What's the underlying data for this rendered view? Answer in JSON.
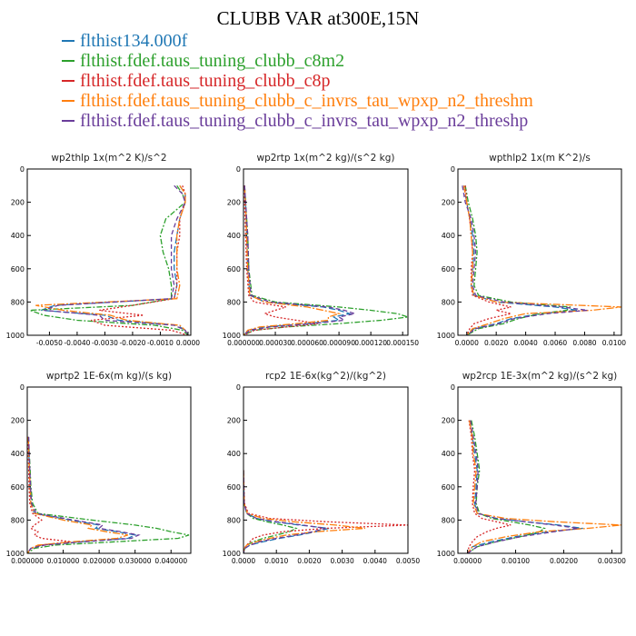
{
  "figure": {
    "title": "CLUBB VAR at300E,15N"
  },
  "legend": [
    {
      "label": "flthist134.000f",
      "color": "#1f77b4"
    },
    {
      "label": "flthist.fdef.taus_tuning_clubb_c8m2",
      "color": "#2ca02c"
    },
    {
      "label": "flthist.fdef.taus_tuning_clubb_c8p",
      "color": "#d62728"
    },
    {
      "label": "flthist.fdef.taus_tuning_clubb_c_invrs_tau_wpxp_n2_threshm",
      "color": "#ff7f0e"
    },
    {
      "label": "flthist.fdef.taus_tuning_clubb_c_invrs_tau_wpxp_n2_threshp",
      "color": "#6a3d9a"
    }
  ],
  "chart_data": [
    {
      "type": "line",
      "title": "wp2thlp  1x(m^2 K)/s^2",
      "xlim": [
        -0.0058,
        0.0001
      ],
      "ylim": [
        1000,
        0
      ],
      "xticks": [
        -0.005,
        -0.004,
        -0.003,
        -0.002,
        -0.001,
        0
      ],
      "xtick_labels": [
        "-0.0050",
        "-0.0040",
        "-0.0030",
        "-0.0020",
        "-0.0010",
        "0.0000"
      ],
      "yticks": [
        0,
        200,
        400,
        600,
        800,
        1000
      ],
      "y": [
        100,
        150,
        200,
        300,
        400,
        500,
        600,
        700,
        780,
        820,
        850,
        880,
        910,
        940,
        970,
        1000
      ],
      "series": [
        {
          "name": "flthist134.000f",
          "values": [
            -0.0003,
            -0.0001,
            -0.0001,
            -0.0003,
            -0.0004,
            -0.0005,
            -0.0005,
            -0.0004,
            -0.0005,
            -0.0048,
            -0.0053,
            -0.003,
            -0.0025,
            -0.0004,
            -0.0001,
            0
          ]
        },
        {
          "name": "flthist.fdef.taus_tuning_clubb_c8m2",
          "values": [
            -0.0004,
            -0.0002,
            -0.0001,
            -0.0008,
            -0.001,
            -0.0009,
            -0.0007,
            -0.0006,
            -0.0006,
            -0.002,
            -0.0057,
            -0.0052,
            -0.004,
            -0.0012,
            -0.0002,
            0
          ]
        },
        {
          "name": "flthist.fdef.taus_tuning_clubb_c8p",
          "values": [
            -0.0002,
            -0.0001,
            -0.0001,
            -0.0003,
            -0.0003,
            -0.0004,
            -0.0004,
            -0.0004,
            -0.0005,
            -0.002,
            -0.0032,
            -0.0016,
            -0.0035,
            -0.003,
            -0.0006,
            0
          ]
        },
        {
          "name": "flthist.fdef.taus_tuning_clubb_c_invrs_tau_wpxp_n2_threshm",
          "values": [
            -0.0003,
            -0.0001,
            -0.0001,
            -0.0003,
            -0.0004,
            -0.0004,
            -0.0004,
            -0.0003,
            -0.0004,
            -0.0055,
            -0.0045,
            -0.0028,
            -0.0022,
            -0.0003,
            -0.0001,
            0
          ]
        },
        {
          "name": "flthist.fdef.taus_tuning_clubb_c_invrs_tau_wpxp_n2_threshp",
          "values": [
            -0.0005,
            -0.0002,
            -0.0001,
            -0.0004,
            -0.0006,
            -0.0006,
            -0.0006,
            -0.0005,
            -0.0006,
            -0.0047,
            -0.0052,
            -0.0032,
            -0.003,
            -0.0005,
            -0.0001,
            0
          ]
        }
      ]
    },
    {
      "type": "line",
      "title": "wp2rtp  1x(m^2 kg)/(s^2 kg)",
      "xlim": [
        0,
        0.000155
      ],
      "ylim": [
        1000,
        0
      ],
      "xticks": [
        0,
        3e-05,
        6e-05,
        9e-05,
        0.00012,
        0.00015
      ],
      "xtick_labels": [
        "0.000000",
        "0.000030",
        "0.000060",
        "0.000090",
        "0.000120",
        "0.000150"
      ],
      "yticks": [
        0,
        200,
        400,
        600,
        800,
        1000
      ],
      "y": [
        100,
        200,
        400,
        600,
        760,
        800,
        830,
        850,
        870,
        890,
        910,
        930,
        950,
        970,
        1000
      ],
      "series": [
        {
          "name": "flthist134.000f",
          "values": [
            1e-06,
            2e-06,
            3e-06,
            4e-06,
            6e-06,
            2e-05,
            7.5e-05,
            9e-05,
            0.0001,
            8.5e-05,
            9e-05,
            6e-05,
            2e-05,
            5e-06,
            0
          ]
        },
        {
          "name": "flthist.fdef.taus_tuning_clubb_c8m2",
          "values": [
            1e-06,
            2e-06,
            4e-06,
            5e-06,
            8e-06,
            3e-05,
            9e-05,
            0.00012,
            0.000145,
            0.000155,
            0.00013,
            9e-05,
            4e-05,
            1e-05,
            0
          ]
        },
        {
          "name": "flthist.fdef.taus_tuning_clubb_c8p",
          "values": [
            1e-06,
            1e-06,
            2e-06,
            3e-06,
            5e-06,
            1e-05,
            4e-05,
            3e-05,
            2e-05,
            3e-05,
            5e-05,
            7e-05,
            4e-05,
            1e-05,
            0
          ]
        },
        {
          "name": "flthist.fdef.taus_tuning_clubb_c_invrs_tau_wpxp_n2_threshm",
          "values": [
            1e-06,
            2e-06,
            3e-06,
            4e-06,
            6e-06,
            2e-05,
            6e-05,
            7.5e-05,
            9e-05,
            8e-05,
            8e-05,
            5e-05,
            1.5e-05,
            4e-06,
            0
          ]
        },
        {
          "name": "flthist.fdef.taus_tuning_clubb_c_invrs_tau_wpxp_n2_threshp",
          "values": [
            1e-06,
            2e-06,
            4e-06,
            5e-06,
            7e-06,
            2.5e-05,
            8e-05,
            9.5e-05,
            0.000105,
            9e-05,
            9.5e-05,
            6.5e-05,
            2.5e-05,
            6e-06,
            0
          ]
        }
      ]
    },
    {
      "type": "line",
      "title": "wpthlp2  1x(m K^2)/s",
      "xlim": [
        -0.0006,
        0.0105
      ],
      "ylim": [
        1000,
        0
      ],
      "xticks": [
        0,
        0.002,
        0.004,
        0.006,
        0.008,
        0.01
      ],
      "xtick_labels": [
        "0.0000",
        "0.0020",
        "0.0040",
        "0.0060",
        "0.0080",
        "0.0100"
      ],
      "yticks": [
        0,
        200,
        400,
        600,
        800,
        1000
      ],
      "y": [
        100,
        200,
        300,
        400,
        500,
        600,
        700,
        760,
        800,
        830,
        850,
        870,
        900,
        930,
        960,
        1000
      ],
      "series": [
        {
          "name": "flthist134.000f",
          "values": [
            -0.0002,
            0.0,
            0.0002,
            0.0004,
            0.0005,
            0.0004,
            0.0003,
            0.0005,
            0.002,
            0.006,
            0.0075,
            0.005,
            0.003,
            0.002,
            0.0005,
            0
          ]
        },
        {
          "name": "flthist.fdef.taus_tuning_clubb_c8m2",
          "values": [
            -0.0001,
            0.0001,
            0.0004,
            0.0006,
            0.0007,
            0.0006,
            0.0005,
            0.0008,
            0.003,
            0.007,
            0.0068,
            0.005,
            0.0035,
            0.0025,
            0.0008,
            0
          ]
        },
        {
          "name": "flthist.fdef.taus_tuning_clubb_c8p",
          "values": [
            -0.0001,
            0.0,
            0.0002,
            0.0003,
            0.0004,
            0.0003,
            0.0003,
            0.0004,
            0.0015,
            0.003,
            0.002,
            0.003,
            0.0015,
            0.0005,
            0.0002,
            0
          ]
        },
        {
          "name": "flthist.fdef.taus_tuning_clubb_c_invrs_tau_wpxp_n2_threshm",
          "values": [
            -0.0002,
            0.0,
            0.0002,
            0.0003,
            0.0004,
            0.0004,
            0.0003,
            0.0005,
            0.002,
            0.0105,
            0.0085,
            0.004,
            0.0025,
            0.0015,
            0.0004,
            0
          ]
        },
        {
          "name": "flthist.fdef.taus_tuning_clubb_c_invrs_tau_wpxp_n2_threshp",
          "values": [
            -0.0003,
            -0.0001,
            0.0003,
            0.0005,
            0.0006,
            0.0005,
            0.0004,
            0.0006,
            0.0025,
            0.0065,
            0.0082,
            0.0055,
            0.0032,
            0.0022,
            0.0006,
            0
          ]
        }
      ]
    },
    {
      "type": "line",
      "title": "wprtp2  1E-6x(m kg)/(s kg)",
      "xlim": [
        0,
        0.0455
      ],
      "ylim": [
        1000,
        0
      ],
      "xticks": [
        0,
        0.01,
        0.02,
        0.03,
        0.04
      ],
      "xtick_labels": [
        "0.000000",
        "0.010000",
        "0.020000",
        "0.030000",
        "0.040000"
      ],
      "yticks": [
        0,
        200,
        400,
        600,
        800,
        1000
      ],
      "y": [
        300,
        500,
        600,
        700,
        760,
        800,
        830,
        850,
        870,
        890,
        910,
        930,
        950,
        970,
        1000
      ],
      "series": [
        {
          "name": "flthist134.000f",
          "values": [
            0.0003,
            0.0006,
            0.0008,
            0.001,
            0.002,
            0.012,
            0.02,
            0.019,
            0.025,
            0.03,
            0.028,
            0.015,
            0.004,
            0.001,
            0
          ]
        },
        {
          "name": "flthist.fdef.taus_tuning_clubb_c8m2",
          "values": [
            0.0003,
            0.0008,
            0.001,
            0.0015,
            0.003,
            0.018,
            0.03,
            0.036,
            0.04,
            0.045,
            0.042,
            0.025,
            0.008,
            0.002,
            0
          ]
        },
        {
          "name": "flthist.fdef.taus_tuning_clubb_c8p",
          "values": [
            0.0002,
            0.0004,
            0.0005,
            0.0007,
            0.0015,
            0.004,
            0.002,
            0.001,
            0.003,
            0.002,
            0.004,
            0.012,
            0.004,
            0.001,
            0
          ]
        },
        {
          "name": "flthist.fdef.taus_tuning_clubb_c_invrs_tau_wpxp_n2_threshm",
          "values": [
            0.0003,
            0.0006,
            0.0008,
            0.001,
            0.002,
            0.01,
            0.018,
            0.017,
            0.022,
            0.028,
            0.025,
            0.013,
            0.003,
            0.001,
            0
          ]
        },
        {
          "name": "flthist.fdef.taus_tuning_clubb_c_invrs_tau_wpxp_n2_threshp",
          "values": [
            0.0004,
            0.0007,
            0.0009,
            0.0012,
            0.0025,
            0.013,
            0.021,
            0.02,
            0.026,
            0.031,
            0.029,
            0.016,
            0.005,
            0.001,
            0
          ]
        }
      ]
    },
    {
      "type": "line",
      "title": "rcp2  1E-6x(kg^2)/(kg^2)",
      "xlim": [
        0,
        0.005
      ],
      "ylim": [
        1000,
        0
      ],
      "xticks": [
        0,
        0.001,
        0.002,
        0.003,
        0.004,
        0.005
      ],
      "xtick_labels": [
        "0.0000",
        "0.0010",
        "0.0020",
        "0.0030",
        "0.0040",
        "0.0050"
      ],
      "yticks": [
        0,
        200,
        400,
        600,
        800,
        1000
      ],
      "y": [
        500,
        700,
        760,
        790,
        810,
        830,
        850,
        870,
        890,
        910,
        930,
        950,
        970,
        1000
      ],
      "series": [
        {
          "name": "flthist134.000f",
          "values": [
            0,
            2e-05,
            0.0001,
            0.0004,
            0.0009,
            0.0017,
            0.0026,
            0.0022,
            0.0017,
            0.0011,
            0.0006,
            0.0002,
            5e-05,
            0
          ]
        },
        {
          "name": "flthist.fdef.taus_tuning_clubb_c8m2",
          "values": [
            0,
            2e-05,
            0.0001,
            0.0003,
            0.0007,
            0.0012,
            0.0016,
            0.0014,
            0.001,
            0.0006,
            0.0003,
            0.0001,
            3e-05,
            0
          ]
        },
        {
          "name": "flthist.fdef.taus_tuning_clubb_c8p",
          "values": [
            0,
            3e-05,
            0.00015,
            0.0008,
            0.0025,
            0.005,
            0.0025,
            0.0012,
            0.0006,
            0.0003,
            0.0002,
            0.0001,
            2e-05,
            0
          ]
        },
        {
          "name": "flthist.fdef.taus_tuning_clubb_c_invrs_tau_wpxp_n2_threshm",
          "values": [
            0,
            2e-05,
            0.00012,
            0.0006,
            0.0015,
            0.0028,
            0.0037,
            0.0022,
            0.0013,
            0.0008,
            0.0004,
            0.0001,
            3e-05,
            0
          ]
        },
        {
          "name": "flthist.fdef.taus_tuning_clubb_c_invrs_tau_wpxp_n2_threshp",
          "values": [
            0,
            2e-05,
            0.0001,
            0.0004,
            0.001,
            0.0018,
            0.0025,
            0.0021,
            0.0016,
            0.001,
            0.0005,
            0.0002,
            4e-05,
            0
          ]
        }
      ]
    },
    {
      "type": "line",
      "title": "wp2rcp  1E-3x(m^2 kg)/(s^2 kg)",
      "xlim": [
        -0.0002,
        0.0032
      ],
      "ylim": [
        1000,
        0
      ],
      "xticks": [
        0,
        0.001,
        0.002,
        0.003
      ],
      "xtick_labels": [
        "0.00000",
        "0.00100",
        "0.00200",
        "0.00300"
      ],
      "yticks": [
        0,
        200,
        400,
        600,
        800,
        1000
      ],
      "y": [
        200,
        300,
        400,
        500,
        600,
        700,
        760,
        790,
        810,
        830,
        850,
        870,
        900,
        930,
        960,
        1000
      ],
      "series": [
        {
          "name": "flthist134.000f",
          "values": [
            5e-05,
            0.0001,
            0.00015,
            0.0002,
            0.00018,
            0.00015,
            0.0002,
            0.0006,
            0.0012,
            0.0019,
            0.0024,
            0.0017,
            0.001,
            0.0005,
            0.0001,
            0
          ]
        },
        {
          "name": "flthist.fdef.taus_tuning_clubb_c8m2",
          "values": [
            8e-05,
            0.00015,
            0.0002,
            0.00025,
            0.0002,
            0.00018,
            0.00025,
            0.0005,
            0.0009,
            0.0013,
            0.0016,
            0.0015,
            0.0011,
            0.0006,
            0.0002,
            0
          ]
        },
        {
          "name": "flthist.fdef.taus_tuning_clubb_c8p",
          "values": [
            3e-05,
            8e-05,
            0.0001,
            0.00015,
            0.00012,
            0.0001,
            0.00015,
            0.0003,
            0.0006,
            0.0009,
            0.0006,
            0.0004,
            0.0002,
            0.0001,
            3e-05,
            0
          ]
        },
        {
          "name": "flthist.fdef.taus_tuning_clubb_c_invrs_tau_wpxp_n2_threshm",
          "values": [
            4e-05,
            0.0001,
            0.00012,
            0.00018,
            0.00015,
            0.00012,
            0.0002,
            0.0008,
            0.0018,
            0.0032,
            0.0025,
            0.0015,
            0.0008,
            0.0003,
            0.0001,
            0
          ]
        },
        {
          "name": "flthist.fdef.taus_tuning_clubb_c_invrs_tau_wpxp_n2_threshp",
          "values": [
            6e-05,
            0.00012,
            0.00018,
            0.00022,
            0.0002,
            0.00017,
            0.00022,
            0.0006,
            0.0012,
            0.0018,
            0.0023,
            0.0018,
            0.0011,
            0.0006,
            0.0002,
            0
          ]
        }
      ]
    }
  ]
}
